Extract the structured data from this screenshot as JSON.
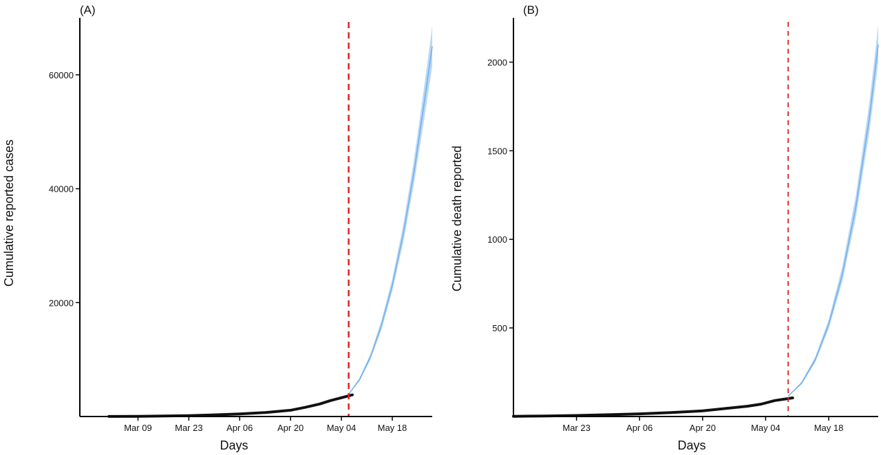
{
  "chart_data": [
    {
      "type": "line",
      "panel_label": "(A)",
      "xlabel": "Days",
      "ylabel": "Cumulative reported cases",
      "x_ticks": [
        "Mar 09",
        "Mar 23",
        "Apr 06",
        "Apr 20",
        "May 04",
        "May 18"
      ],
      "x_tick_dates": [
        "2020-03-09",
        "2020-03-23",
        "2020-04-06",
        "2020-04-20",
        "2020-05-04",
        "2020-05-18"
      ],
      "xlim": [
        "2020-02-22",
        "2020-05-29"
      ],
      "y_ticks": [
        20000,
        40000,
        60000
      ],
      "y_tick_labels": [
        "20000",
        "40000",
        "60000"
      ],
      "ylim": [
        0,
        70000
      ],
      "cutoff_date": "2020-05-06",
      "colors": {
        "observed": "#111111",
        "projection": "#9cc8f2",
        "cutoff": "#e02020"
      },
      "observed": {
        "x": [
          "2020-03-01",
          "2020-03-09",
          "2020-03-16",
          "2020-03-23",
          "2020-03-30",
          "2020-04-06",
          "2020-04-13",
          "2020-04-20",
          "2020-04-24",
          "2020-04-28",
          "2020-05-01",
          "2020-05-04",
          "2020-05-07"
        ],
        "y": [
          10,
          40,
          80,
          160,
          290,
          460,
          700,
          1100,
          1600,
          2200,
          2800,
          3300,
          3800
        ]
      },
      "projection": {
        "x": [
          "2020-05-06",
          "2020-05-09",
          "2020-05-12",
          "2020-05-15",
          "2020-05-18",
          "2020-05-21",
          "2020-05-24",
          "2020-05-27",
          "2020-05-29"
        ],
        "y": [
          3900,
          6500,
          10500,
          16000,
          23000,
          32000,
          43000,
          56000,
          65000
        ],
        "lower": [
          3900,
          6200,
          10000,
          15200,
          22000,
          30500,
          41000,
          53000,
          61500
        ],
        "upper": [
          3900,
          6800,
          11000,
          16800,
          24200,
          33600,
          45200,
          58900,
          68500
        ]
      }
    },
    {
      "type": "line",
      "panel_label": "(B)",
      "xlabel": "Days",
      "ylabel": "Cumulative death reported",
      "x_ticks": [
        "Mar 23",
        "Apr 06",
        "Apr 20",
        "May 04",
        "May 18"
      ],
      "x_tick_dates": [
        "2020-03-23",
        "2020-04-06",
        "2020-04-20",
        "2020-05-04",
        "2020-05-18"
      ],
      "xlim": [
        "2020-03-09",
        "2020-05-29"
      ],
      "y_ticks": [
        500,
        1000,
        1500,
        2000
      ],
      "y_tick_labels": [
        "500",
        "1000",
        "1500",
        "2000"
      ],
      "ylim": [
        0,
        2250
      ],
      "cutoff_date": "2020-05-09",
      "colors": {
        "observed": "#111111",
        "projection": "#9cc8f2",
        "cutoff": "#e02020"
      },
      "observed": {
        "x": [
          "2020-03-09",
          "2020-03-16",
          "2020-03-23",
          "2020-03-30",
          "2020-04-06",
          "2020-04-13",
          "2020-04-20",
          "2020-04-25",
          "2020-04-30",
          "2020-05-03",
          "2020-05-06",
          "2020-05-10"
        ],
        "y": [
          1,
          3,
          6,
          10,
          15,
          22,
          32,
          45,
          58,
          70,
          90,
          105
        ]
      },
      "projection": {
        "x": [
          "2020-05-09",
          "2020-05-12",
          "2020-05-15",
          "2020-05-18",
          "2020-05-21",
          "2020-05-24",
          "2020-05-27",
          "2020-05-29"
        ],
        "y": [
          115,
          190,
          320,
          520,
          800,
          1180,
          1680,
          2100
        ],
        "lower": [
          115,
          182,
          305,
          495,
          760,
          1120,
          1600,
          2000
        ],
        "upper": [
          115,
          198,
          336,
          548,
          845,
          1245,
          1765,
          2210
        ]
      }
    }
  ]
}
